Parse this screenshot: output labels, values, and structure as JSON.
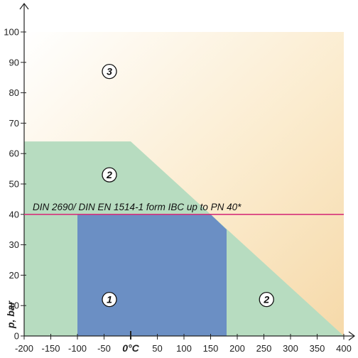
{
  "chart_data": {
    "type": "area",
    "xlabel": "",
    "ylabel": "p, bar",
    "xlim": [
      -200,
      400
    ],
    "ylim": [
      0,
      100
    ],
    "x_ticks": [
      -200,
      -150,
      -100,
      -50,
      0,
      50,
      100,
      150,
      200,
      250,
      300,
      350,
      400
    ],
    "x_tick_labels": [
      "-200",
      "-150",
      "-100",
      "-50",
      "0°C",
      "50",
      "100",
      "150",
      "200",
      "250",
      "300",
      "350",
      "400"
    ],
    "y_ticks": [
      0,
      10,
      20,
      30,
      40,
      50,
      60,
      70,
      80,
      90,
      100
    ],
    "y_tick_labels": [
      "0",
      "10",
      "20",
      "30",
      "40",
      "50",
      "60",
      "70",
      "80",
      "90",
      "100"
    ],
    "grid": false,
    "regions": [
      {
        "label": "3",
        "color": "#f6dcb0",
        "polygon": [
          [
            -200,
            100
          ],
          [
            400,
            100
          ],
          [
            400,
            0
          ],
          [
            -200,
            0
          ]
        ],
        "label_at": [
          -40,
          87
        ]
      },
      {
        "label": "2",
        "color": "#b7dcc0",
        "polygon": [
          [
            -200,
            64
          ],
          [
            0,
            64
          ],
          [
            400,
            0
          ],
          [
            -200,
            0
          ]
        ],
        "label_at": [
          -40,
          53
        ],
        "extra_label_at": [
          255,
          12
        ]
      },
      {
        "label": "1",
        "color": "#6b8fc4",
        "polygon": [
          [
            -100,
            40
          ],
          [
            150,
            40
          ],
          [
            180,
            35
          ],
          [
            180,
            0
          ],
          [
            -100,
            0
          ]
        ],
        "label_at": [
          -40,
          12
        ]
      }
    ],
    "reference_line": {
      "y": 40,
      "color": "#d6317a",
      "label": "DIN 2690/ DIN EN 1514-1 form IBC up to PN 40*"
    }
  }
}
